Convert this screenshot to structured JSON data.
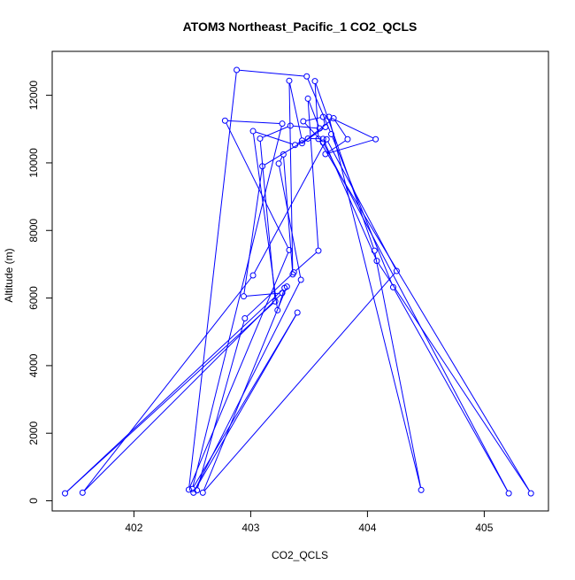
{
  "chart_data": {
    "type": "line",
    "title": "ATOM3 Northeast_Pacific_1 CO2_QCLS",
    "xlabel": "CO2_QCLS",
    "ylabel": "Altitude (m)",
    "xlim": [
      401.3,
      405.55
    ],
    "ylim": [
      -300,
      13300
    ],
    "xticks": [
      402,
      403,
      404,
      405
    ],
    "yticks": [
      0,
      2000,
      4000,
      6000,
      8000,
      10000,
      12000
    ],
    "grid": false,
    "legend": "none",
    "marker": "open-circle",
    "series": [
      {
        "color": "#0000ff",
        "points": [
          [
            402.54,
            310
          ],
          [
            402.95,
            5400
          ],
          [
            403.37,
            6760
          ],
          [
            403.58,
            7400
          ],
          [
            403.49,
            11900
          ],
          [
            403.59,
            11020
          ],
          [
            403.34,
            11100
          ],
          [
            403.08,
            10720
          ],
          [
            403.21,
            5900
          ],
          [
            401.41,
            220
          ],
          [
            403.29,
            6300
          ],
          [
            403.23,
            5640
          ],
          [
            403.02,
            10940
          ],
          [
            403.38,
            10530
          ],
          [
            403.44,
            10660
          ],
          [
            403.33,
            12430
          ],
          [
            403.36,
            6700
          ],
          [
            403.28,
            10250
          ],
          [
            403.24,
            9980
          ],
          [
            403.43,
            6540
          ],
          [
            402.51,
            240
          ],
          [
            403.4,
            5570
          ],
          [
            402.5,
            350
          ],
          [
            403.27,
            11160
          ],
          [
            402.78,
            11250
          ],
          [
            403.33,
            7420
          ],
          [
            402.47,
            330
          ],
          [
            402.88,
            12750
          ],
          [
            403.48,
            12560
          ],
          [
            403.69,
            10850
          ],
          [
            404.22,
            6320
          ],
          [
            405.21,
            220
          ],
          [
            403.62,
            10600
          ],
          [
            403.45,
            11230
          ],
          [
            403.62,
            11360
          ],
          [
            403.64,
            11060
          ],
          [
            403.44,
            10580
          ],
          [
            403.71,
            11320
          ],
          [
            403.83,
            10700
          ],
          [
            403.64,
            10260
          ],
          [
            404.07,
            10700
          ],
          [
            403.67,
            11360
          ],
          [
            404.46,
            320
          ],
          [
            404.06,
            7400
          ],
          [
            403.55,
            12420
          ],
          [
            403.58,
            10710
          ],
          [
            405.4,
            220
          ],
          [
            404.08,
            7100
          ],
          [
            403.62,
            10710
          ],
          [
            403.49,
            10720
          ],
          [
            403.1,
            9900
          ],
          [
            402.94,
            6050
          ],
          [
            403.27,
            6150
          ],
          [
            401.56,
            240
          ],
          [
            403.02,
            6670
          ],
          [
            403.65,
            10700
          ],
          [
            404.25,
            6800
          ],
          [
            402.59,
            240
          ],
          [
            403.31,
            6340
          ]
        ]
      }
    ]
  }
}
